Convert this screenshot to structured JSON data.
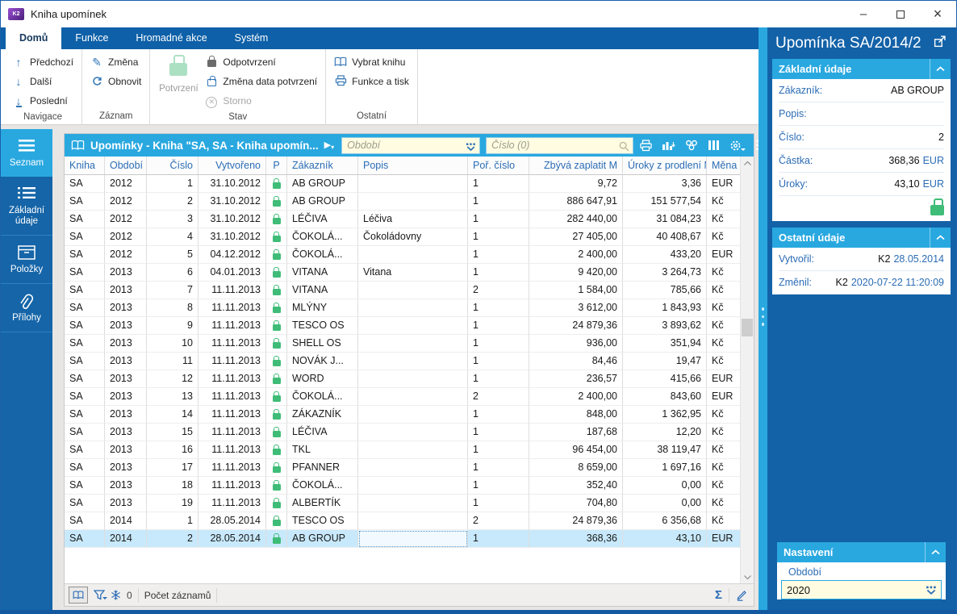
{
  "window": {
    "title": "Kniha upomínek",
    "logo_text": "K2"
  },
  "ribbon": {
    "tabs": [
      {
        "label": "Domů",
        "active": true
      },
      {
        "label": "Funkce",
        "active": false
      },
      {
        "label": "Hromadné akce",
        "active": false
      },
      {
        "label": "Systém",
        "active": false
      }
    ],
    "groups": [
      {
        "label": "Navigace",
        "items": [
          {
            "label": "Předchozí",
            "icon": "arrow-up"
          },
          {
            "label": "Další",
            "icon": "arrow-down"
          },
          {
            "label": "Poslední",
            "icon": "arrow-down-bar"
          }
        ]
      },
      {
        "label": "Záznam",
        "items": [
          {
            "label": "Změna",
            "icon": "pencil"
          },
          {
            "label": "Obnovit",
            "icon": "refresh"
          }
        ]
      },
      {
        "label": "Stav",
        "big": {
          "label": "Potvrzení",
          "icon": "lock-green",
          "disabled": true
        },
        "items": [
          {
            "label": "Odpotvrzení",
            "icon": "lock-dark"
          },
          {
            "label": "Změna data potvrzení",
            "icon": "lock-blue"
          },
          {
            "label": "Storno",
            "icon": "cancel",
            "disabled": true
          }
        ]
      },
      {
        "label": "Ostatní",
        "items": [
          {
            "label": "Vybrat knihu",
            "icon": "book"
          },
          {
            "label": "Funkce a tisk",
            "icon": "printer"
          }
        ]
      }
    ]
  },
  "sidebar": {
    "items": [
      {
        "label": "Seznam",
        "icon": "menu",
        "active": true
      },
      {
        "label": "Základní údaje",
        "icon": "list",
        "active": false
      },
      {
        "label": "Položky",
        "icon": "box",
        "active": false
      },
      {
        "label": "Přílohy",
        "icon": "paperclip",
        "active": false
      }
    ]
  },
  "table_panel": {
    "title": "Upomínky - Kniha \"SA, SA - Kniha upomín...",
    "filters": {
      "period_placeholder": "Období",
      "number_placeholder": "Číslo (0)"
    },
    "columns": [
      "Kniha",
      "Období",
      "Číslo",
      "Vytvořeno",
      "P",
      "Zákazník",
      "Popis",
      "Poř. číslo",
      "Zbývá zaplatit M",
      "Úroky z prodlení M",
      "Měna"
    ],
    "rows": [
      [
        "SA",
        "2012",
        "1",
        "31.10.2012",
        "AB GROUP",
        "",
        "1",
        "9,72",
        "3,36",
        "EUR"
      ],
      [
        "SA",
        "2012",
        "2",
        "31.10.2012",
        "AB GROUP",
        "",
        "1",
        "886 647,91",
        "151 577,54",
        "Kč"
      ],
      [
        "SA",
        "2012",
        "3",
        "31.10.2012",
        "LÉČIVA",
        "Léčiva",
        "1",
        "282 440,00",
        "31 084,23",
        "Kč"
      ],
      [
        "SA",
        "2012",
        "4",
        "31.10.2012",
        "ČOKOLÁ...",
        "Čokoládovny",
        "1",
        "27 405,00",
        "40 408,67",
        "Kč"
      ],
      [
        "SA",
        "2012",
        "5",
        "04.12.2012",
        "ČOKOLÁ...",
        "",
        "1",
        "2 400,00",
        "433,20",
        "EUR"
      ],
      [
        "SA",
        "2013",
        "6",
        "04.01.2013",
        "VITANA",
        "Vitana",
        "1",
        "9 420,00",
        "3 264,73",
        "Kč"
      ],
      [
        "SA",
        "2013",
        "7",
        "11.11.2013",
        "VITANA",
        "",
        "2",
        "1 584,00",
        "785,66",
        "Kč"
      ],
      [
        "SA",
        "2013",
        "8",
        "11.11.2013",
        "MLÝNY",
        "",
        "1",
        "3 612,00",
        "1 843,93",
        "Kč"
      ],
      [
        "SA",
        "2013",
        "9",
        "11.11.2013",
        "TESCO OS",
        "",
        "1",
        "24 879,36",
        "3 893,62",
        "Kč"
      ],
      [
        "SA",
        "2013",
        "10",
        "11.11.2013",
        "SHELL OS",
        "",
        "1",
        "936,00",
        "351,94",
        "Kč"
      ],
      [
        "SA",
        "2013",
        "11",
        "11.11.2013",
        "NOVÁK J...",
        "",
        "1",
        "84,46",
        "19,47",
        "Kč"
      ],
      [
        "SA",
        "2013",
        "12",
        "11.11.2013",
        "WORD",
        "",
        "1",
        "236,57",
        "415,66",
        "EUR"
      ],
      [
        "SA",
        "2013",
        "13",
        "11.11.2013",
        "ČOKOLÁ...",
        "",
        "2",
        "2 400,00",
        "843,60",
        "EUR"
      ],
      [
        "SA",
        "2013",
        "14",
        "11.11.2013",
        "ZÁKAZNÍK",
        "",
        "1",
        "848,00",
        "1 362,95",
        "Kč"
      ],
      [
        "SA",
        "2013",
        "15",
        "11.11.2013",
        "LÉČIVA",
        "",
        "1",
        "187,68",
        "12,20",
        "Kč"
      ],
      [
        "SA",
        "2013",
        "16",
        "11.11.2013",
        "TKL",
        "",
        "1",
        "96 454,00",
        "38 119,47",
        "Kč"
      ],
      [
        "SA",
        "2013",
        "17",
        "11.11.2013",
        "PFANNER",
        "",
        "1",
        "8 659,00",
        "1 697,16",
        "Kč"
      ],
      [
        "SA",
        "2013",
        "18",
        "11.11.2013",
        "ČOKOLÁ...",
        "",
        "1",
        "352,40",
        "0,00",
        "Kč"
      ],
      [
        "SA",
        "2013",
        "19",
        "11.11.2013",
        "ALBERTÍK",
        "",
        "1",
        "704,80",
        "0,00",
        "Kč"
      ],
      [
        "SA",
        "2014",
        "1",
        "28.05.2014",
        "TESCO OS",
        "",
        "2",
        "24 879,36",
        "6 356,68",
        "Kč"
      ],
      [
        "SA",
        "2014",
        "2",
        "28.05.2014",
        "AB GROUP",
        "",
        "1",
        "368,36",
        "43,10",
        "EUR"
      ]
    ],
    "selected_row": 20,
    "status": {
      "frozen_count": "0",
      "records_label": "Počet záznamů"
    }
  },
  "detail_panel": {
    "title": "Upomínka SA/2014/2",
    "basic": {
      "title": "Základní údaje",
      "fields": [
        {
          "label": "Zákazník:",
          "value": "AB GROUP",
          "unit": ""
        },
        {
          "label": "Popis:",
          "value": "",
          "unit": ""
        },
        {
          "label": "Číslo:",
          "value": "2",
          "unit": ""
        },
        {
          "label": "Částka:",
          "value": "368,36",
          "unit": "EUR"
        },
        {
          "label": "Úroky:",
          "value": "43,10",
          "unit": "EUR"
        }
      ]
    },
    "other": {
      "title": "Ostatní údaje",
      "fields": [
        {
          "label": "Vytvořil:",
          "value": "K2",
          "unit": "28.05.2014"
        },
        {
          "label": "Změnil:",
          "value": "K2",
          "unit": "2020-07-22 11:20:09"
        }
      ]
    },
    "settings": {
      "title": "Nastavení",
      "period_label": "Období",
      "period_value": "2020"
    }
  },
  "colors": {
    "accent_cyan": "#29A8E0",
    "dark_blue": "#1362A8",
    "lock_green": "#3FBC77",
    "selected_row": "#C8E9FB",
    "input_cream": "#FFFCE1",
    "label_blue": "#2B6CB5"
  }
}
